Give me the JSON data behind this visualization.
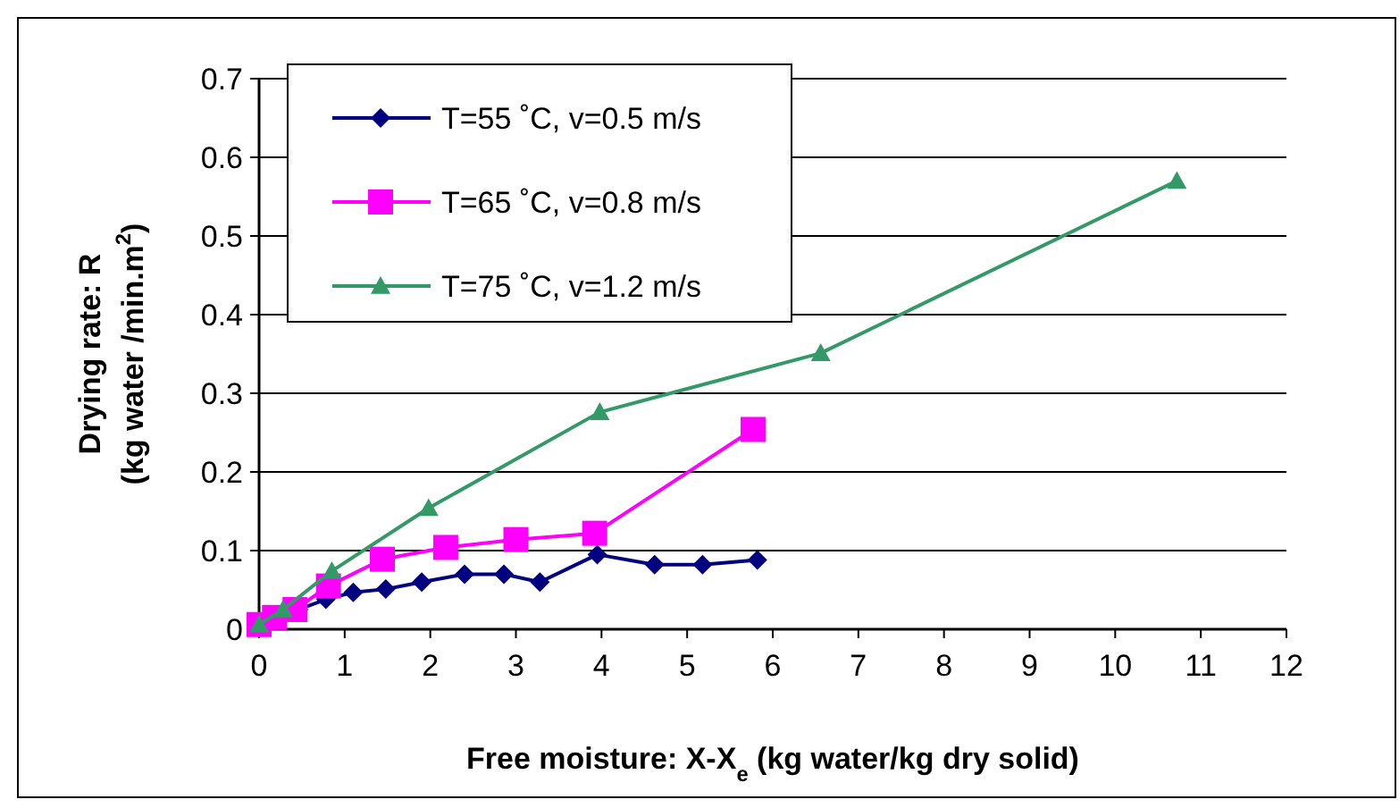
{
  "chart_data": {
    "type": "line",
    "xlabel": "Free moisture: X-X$_{e}$ (kg water/kg dry solid)",
    "ylabel": "Drying rate: R\n(kg water /min.m$^{2}$)",
    "xlim": [
      0,
      12
    ],
    "xticks": [
      0,
      1,
      2,
      3,
      4,
      5,
      6,
      7,
      8,
      9,
      10,
      11,
      12
    ],
    "ylim": [
      0,
      0.7
    ],
    "yticks": [
      0,
      0.1,
      0.2,
      0.3,
      0.4,
      0.5,
      0.6,
      0.7
    ],
    "grid": "y",
    "legend": "top left",
    "series": [
      {
        "name": "T=55 ˚C, v=0.5 m/s",
        "color": "#000080",
        "marker": "diamond",
        "x": [
          0,
          0.1,
          0.46,
          0.78,
          1.1,
          1.48,
          1.9,
          2.4,
          2.86,
          3.28,
          3.95,
          4.62,
          5.18,
          5.82
        ],
        "values": [
          0.006,
          0.012,
          0.025,
          0.038,
          0.047,
          0.051,
          0.06,
          0.07,
          0.07,
          0.06,
          0.095,
          0.082,
          0.082,
          0.088
        ]
      },
      {
        "name": "T=65 ˚C, v=0.8 m/s",
        "color": "#ff00ff",
        "marker": "square",
        "x": [
          0,
          0.18,
          0.42,
          0.81,
          1.44,
          2.18,
          3.0,
          3.92,
          5.77
        ],
        "values": [
          0.006,
          0.015,
          0.025,
          0.055,
          0.089,
          0.104,
          0.114,
          0.122,
          0.254
        ]
      },
      {
        "name": "T=75 ˚C, v=1.2 m/s",
        "color": "#339966",
        "marker": "triangle",
        "x": [
          0,
          0.28,
          0.85,
          1.98,
          3.98,
          6.56,
          10.72
        ],
        "values": [
          0.006,
          0.025,
          0.074,
          0.154,
          0.276,
          0.351,
          0.57
        ]
      }
    ]
  }
}
